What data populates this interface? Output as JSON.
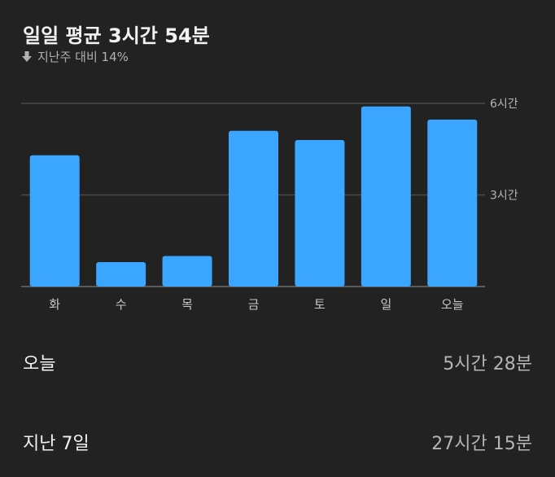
{
  "header": {
    "title": "일일 평균 3시간 54분",
    "change_text": "지난주 대비 14%",
    "change_icon": "arrow-down-icon"
  },
  "chart_data": {
    "type": "bar",
    "categories": [
      "화",
      "수",
      "목",
      "금",
      "토",
      "일",
      "오늘"
    ],
    "values": [
      4.3,
      0.8,
      1.0,
      5.1,
      4.8,
      5.9,
      5.47
    ],
    "ylim": [
      0,
      6
    ],
    "yticks": [
      {
        "value": 3,
        "label": "3시간"
      },
      {
        "value": 6,
        "label": "6시간"
      }
    ],
    "bar_color": "#3ba6ff",
    "grid": true
  },
  "summary": {
    "today_label": "오늘",
    "today_value": "5시간 28분",
    "week_label": "지난 7일",
    "week_value": "27시간 15분"
  },
  "colors": {
    "background": "#222222",
    "bar": "#3ba6ff",
    "grid": "#4a4a4a"
  }
}
